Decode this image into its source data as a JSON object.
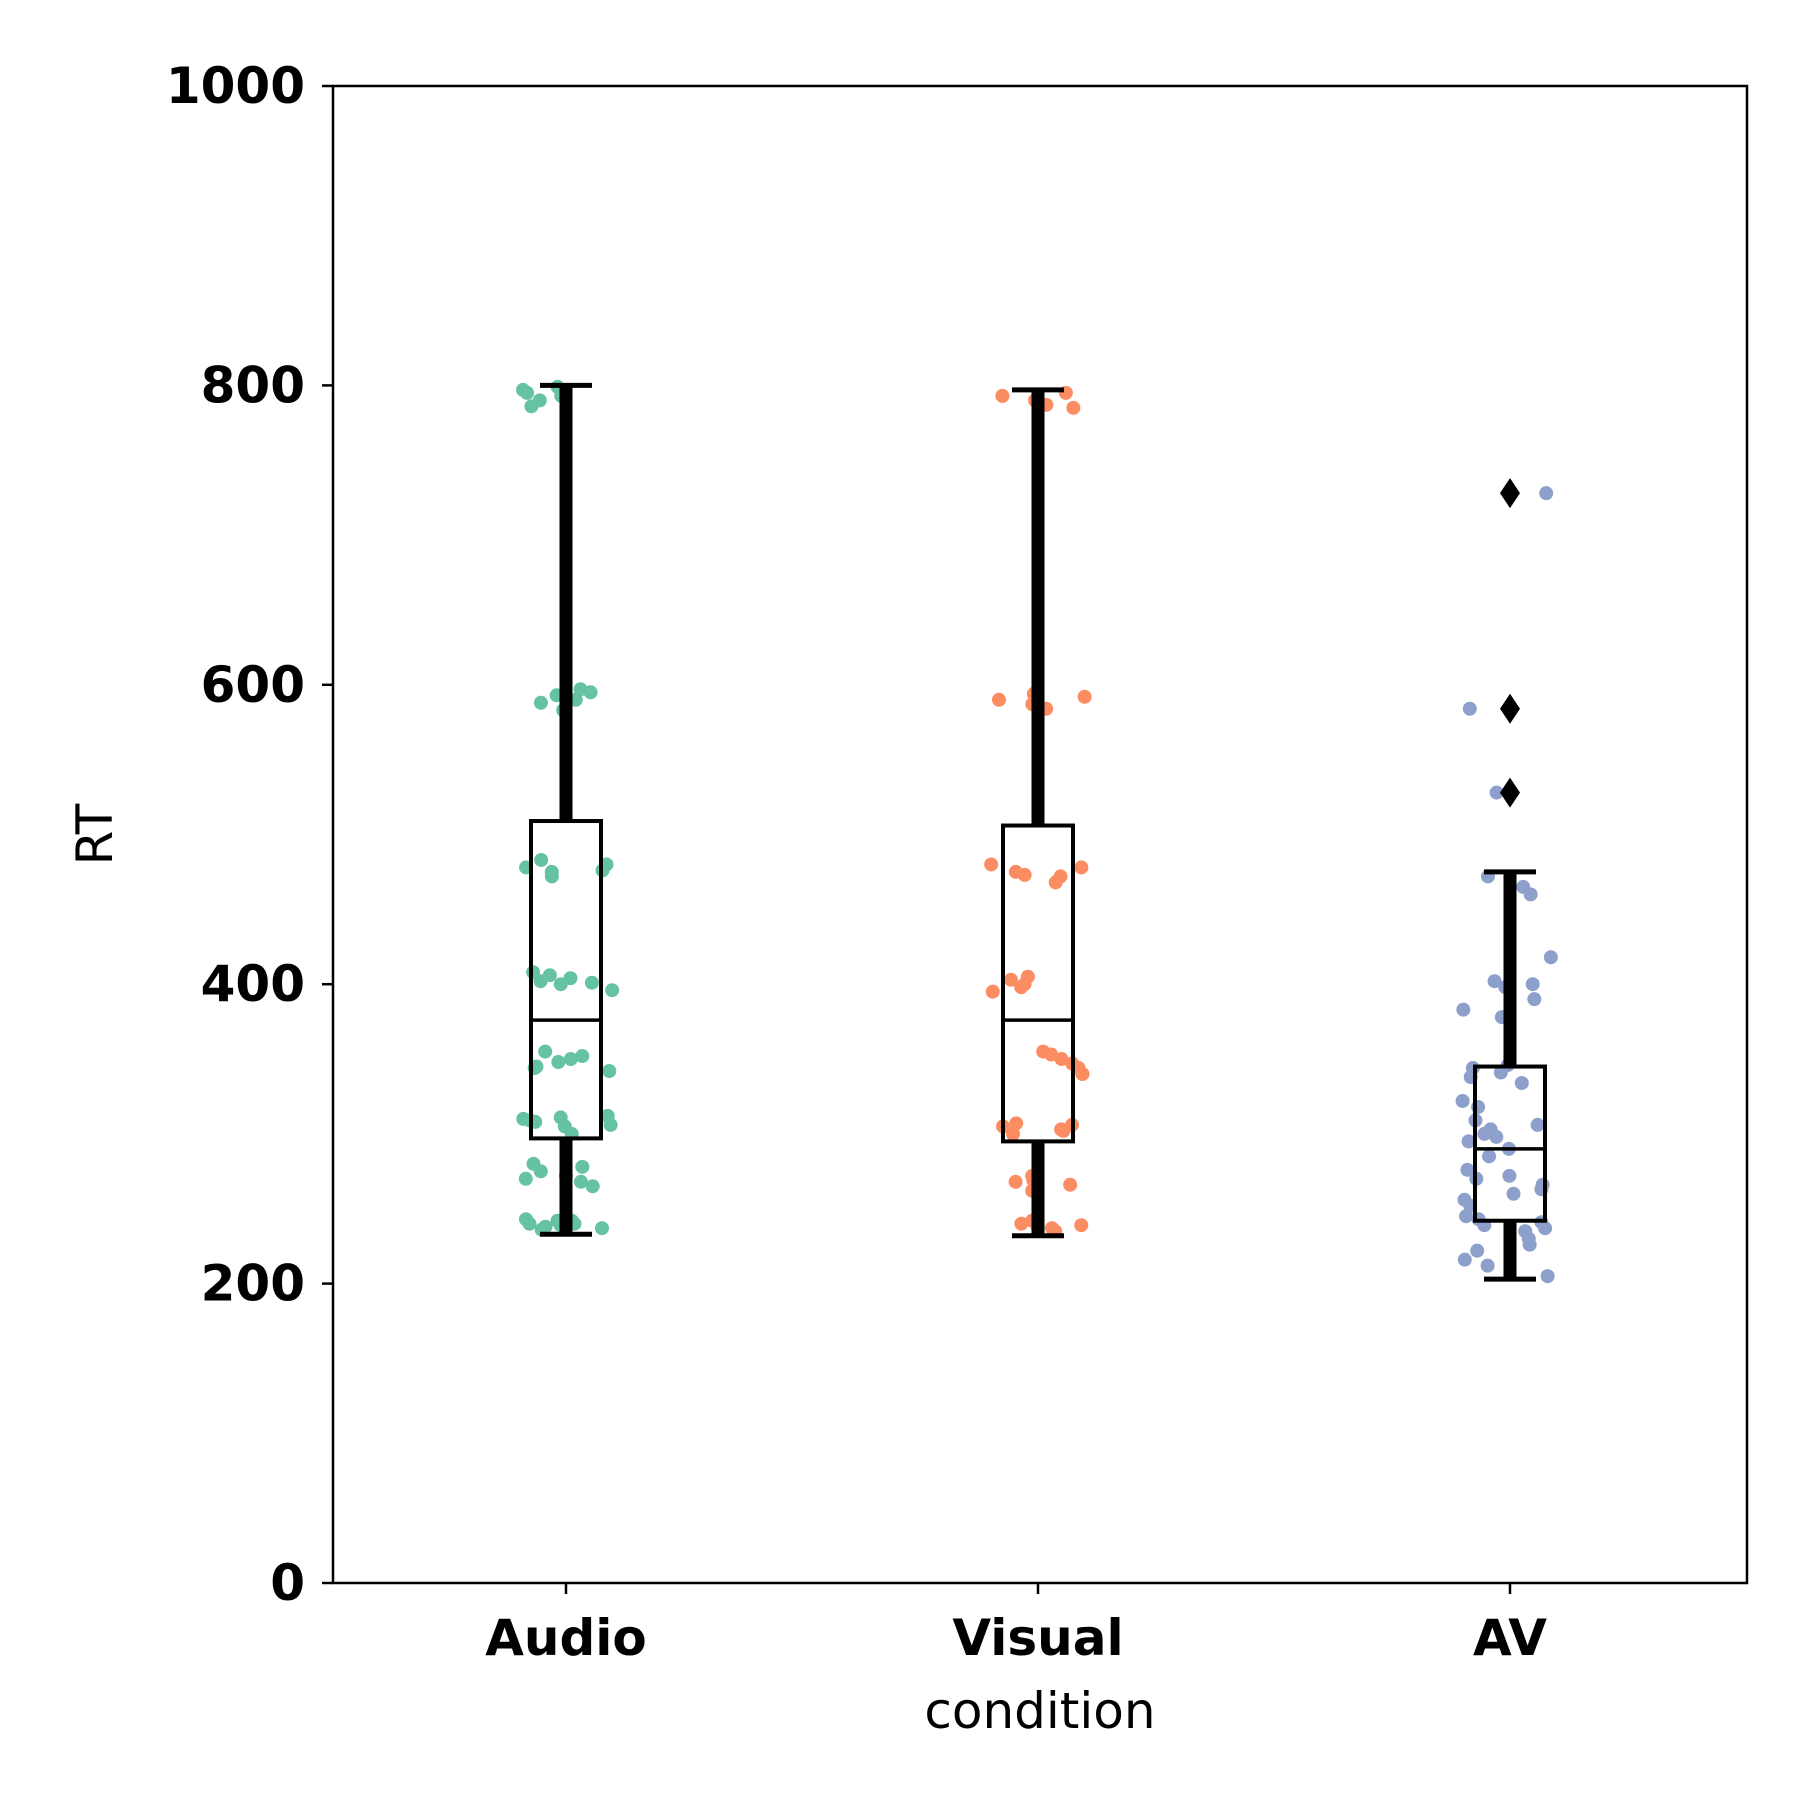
{
  "chart_data": {
    "type": "box",
    "xlabel": "condition",
    "ylabel": "RT",
    "ylim": [
      0,
      1000
    ],
    "yticks": [
      0,
      200,
      400,
      600,
      800,
      1000
    ],
    "categories": [
      "Audio",
      "Visual",
      "AV"
    ],
    "grid": false,
    "legend": "none",
    "series": [
      {
        "category": "Audio",
        "color": "#66c2a5",
        "box": {
          "whisker_low": 233,
          "q1": 297,
          "median": 376,
          "q3": 509,
          "whisker_high": 800
        },
        "outliers": [],
        "points": [
          238,
          242,
          240,
          236,
          239,
          241,
          243,
          237,
          240,
          242,
          238,
          265,
          268,
          270,
          272,
          275,
          278,
          280,
          300,
          305,
          308,
          310,
          312,
          306,
          309,
          311,
          342,
          345,
          348,
          350,
          352,
          355,
          344,
          396,
          400,
          402,
          404,
          406,
          408,
          401,
          472,
          475,
          478,
          480,
          483,
          476,
          583,
          588,
          590,
          593,
          595,
          597,
          786,
          790,
          793,
          795,
          797,
          799
        ]
      },
      {
        "category": "Visual",
        "color": "#fc8d62",
        "box": {
          "whisker_low": 232,
          "q1": 295,
          "median": 376,
          "q3": 506,
          "whisker_high": 797
        },
        "outliers": [],
        "points": [
          235,
          237,
          239,
          240,
          242,
          238,
          262,
          266,
          269,
          272,
          268,
          300,
          303,
          305,
          307,
          302,
          306,
          340,
          344,
          347,
          350,
          353,
          355,
          395,
          398,
          400,
          403,
          405,
          468,
          472,
          475,
          478,
          480,
          473,
          584,
          587,
          590,
          592,
          594,
          785,
          787,
          790,
          793,
          795
        ]
      },
      {
        "category": "AV",
        "color": "#8da0cb",
        "box": {
          "whisker_low": 203,
          "q1": 242,
          "median": 290,
          "q3": 345,
          "whisker_high": 475
        },
        "outliers": [
          528,
          584,
          728
        ],
        "points": [
          205,
          212,
          216,
          222,
          226,
          230,
          235,
          237,
          239,
          241,
          243,
          245,
          252,
          256,
          260,
          263,
          266,
          270,
          272,
          276,
          285,
          290,
          295,
          298,
          300,
          303,
          306,
          309,
          318,
          322,
          334,
          338,
          341,
          344,
          346,
          378,
          383,
          390,
          398,
          400,
          402,
          418,
          460,
          465,
          472,
          528,
          584,
          728
        ]
      }
    ]
  }
}
